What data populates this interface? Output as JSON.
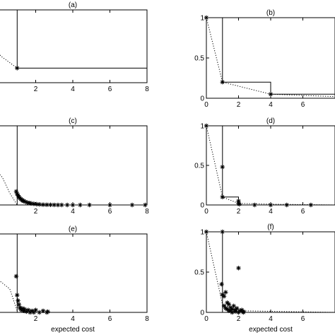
{
  "chart_data": [
    {
      "type": "line",
      "title": "(a)",
      "xlabel": "",
      "xlim": [
        0,
        8
      ],
      "ylim": [
        0,
        1
      ],
      "xticks": [
        "2",
        "4",
        "6",
        "8"
      ],
      "yticks": [],
      "staircase": [
        [
          1,
          1.05
        ],
        [
          1,
          0.2
        ],
        [
          8,
          0.2
        ]
      ],
      "dotted": [
        [
          -0.2,
          0.45
        ],
        [
          0.15,
          0.36
        ],
        [
          1,
          0.2
        ]
      ],
      "points": [
        [
          1,
          0.2
        ]
      ]
    },
    {
      "type": "line",
      "title": "(b)",
      "xlabel": "",
      "xlim": [
        0,
        8
      ],
      "ylim": [
        0,
        1
      ],
      "xticks": [
        "0",
        "2",
        "4",
        "6"
      ],
      "yticks": [
        "0",
        "0.5",
        "1"
      ],
      "staircase": [
        [
          1,
          1.05
        ],
        [
          1,
          0.2
        ],
        [
          4,
          0.2
        ],
        [
          4,
          0.05
        ],
        [
          8,
          0.05
        ]
      ],
      "dotted": [
        [
          0,
          1
        ],
        [
          1,
          0.2
        ],
        [
          4,
          0.05
        ],
        [
          8,
          0.02
        ]
      ],
      "points": [
        [
          0,
          1
        ],
        [
          1,
          0.2
        ],
        [
          4,
          0.05
        ]
      ]
    },
    {
      "type": "scatter",
      "title": "(c)",
      "xlabel": "",
      "xlim": [
        0,
        8
      ],
      "ylim": [
        0,
        1
      ],
      "xticks": [
        "2",
        "4",
        "6",
        "8"
      ],
      "yticks": [],
      "staircase": [
        [
          1,
          1.05
        ],
        [
          1,
          0.0
        ],
        [
          8,
          0.0
        ]
      ],
      "dotted": [
        [
          -0.2,
          0.45
        ],
        [
          0.2,
          0.35
        ],
        [
          0.6,
          0.15
        ],
        [
          1,
          0.0
        ]
      ],
      "points": [
        [
          0.95,
          0.17
        ],
        [
          1.0,
          0.14
        ],
        [
          1.05,
          0.12
        ],
        [
          1.1,
          0.1
        ],
        [
          1.15,
          0.085
        ],
        [
          1.2,
          0.075
        ],
        [
          1.25,
          0.065
        ],
        [
          1.3,
          0.055
        ],
        [
          1.35,
          0.05
        ],
        [
          1.45,
          0.04
        ],
        [
          1.55,
          0.03
        ],
        [
          1.65,
          0.025
        ],
        [
          1.75,
          0.02
        ],
        [
          1.9,
          0.015
        ],
        [
          2.05,
          0.01
        ],
        [
          2.2,
          0.007
        ],
        [
          2.4,
          0.004
        ],
        [
          2.6,
          0.003
        ],
        [
          2.8,
          0.002
        ],
        [
          3.0,
          0.001
        ],
        [
          3.2,
          0.0
        ],
        [
          3.4,
          0.0
        ],
        [
          3.7,
          0.0
        ],
        [
          4.0,
          0.0
        ],
        [
          4.4,
          0.0
        ],
        [
          4.9,
          0.0
        ],
        [
          6.0,
          0.0
        ],
        [
          7.2,
          0.0
        ],
        [
          7.9,
          0.0
        ]
      ]
    },
    {
      "type": "scatter",
      "title": "(d)",
      "xlabel": "",
      "xlim": [
        0,
        8
      ],
      "ylim": [
        0,
        1
      ],
      "xticks": [
        "0",
        "2",
        "4",
        "6"
      ],
      "yticks": [
        "0",
        "0.5",
        "1"
      ],
      "staircase": [
        [
          1,
          1.05
        ],
        [
          1,
          0.1
        ],
        [
          2,
          0.1
        ],
        [
          2,
          0.0
        ],
        [
          8,
          0.0
        ]
      ],
      "dotted": [
        [
          0,
          1
        ],
        [
          1,
          0.1
        ],
        [
          2,
          0.02
        ],
        [
          4,
          0.01
        ],
        [
          8,
          0.0
        ]
      ],
      "points": [
        [
          0,
          1
        ],
        [
          1,
          0.48
        ],
        [
          1,
          0.1
        ],
        [
          2,
          0.05
        ],
        [
          2,
          0.02
        ],
        [
          2.05,
          0.01
        ],
        [
          3,
          0.0
        ],
        [
          4,
          0.0
        ],
        [
          5,
          0.0
        ],
        [
          6.5,
          0.0
        ]
      ]
    },
    {
      "type": "scatter",
      "title": "(e)",
      "xlabel": "expected cost",
      "xlim": [
        0,
        8
      ],
      "ylim": [
        0,
        1
      ],
      "xticks": [
        "2",
        "4",
        "6",
        "8"
      ],
      "yticks": [],
      "staircase": [
        [
          1,
          1.05
        ],
        [
          1,
          0.0
        ],
        [
          8,
          0.0
        ]
      ],
      "dotted": [
        [
          -0.2,
          0.45
        ],
        [
          0.6,
          0.3
        ],
        [
          1,
          0.02
        ]
      ],
      "points": [
        [
          0.95,
          0.46
        ],
        [
          1.0,
          0.22
        ],
        [
          1.05,
          0.15
        ],
        [
          1.1,
          0.1
        ],
        [
          1.15,
          0.06
        ],
        [
          1.2,
          0.04
        ],
        [
          1.25,
          0.03
        ],
        [
          1.3,
          0.05
        ],
        [
          1.35,
          0.02
        ],
        [
          1.4,
          0.04
        ],
        [
          1.5,
          0.01
        ],
        [
          1.6,
          0.03
        ],
        [
          1.7,
          0.0
        ],
        [
          1.8,
          0.02
        ],
        [
          1.9,
          0.0
        ],
        [
          2.0,
          0.03
        ],
        [
          2.2,
          0.0
        ],
        [
          2.4,
          0.02
        ],
        [
          2.6,
          0.0
        ],
        [
          2.65,
          0.01
        ]
      ]
    },
    {
      "type": "scatter",
      "title": "(f)",
      "xlabel": "expected cost",
      "xlim": [
        0,
        8
      ],
      "ylim": [
        0,
        1
      ],
      "xticks": [
        "0",
        "2",
        "4",
        "6"
      ],
      "yticks": [
        "0",
        "0.5",
        "1"
      ],
      "staircase": [
        [
          1,
          1.05
        ],
        [
          1,
          0.0
        ],
        [
          8,
          0.0
        ]
      ],
      "dotted": [
        [
          0,
          1
        ],
        [
          1,
          0.1
        ],
        [
          2,
          0.02
        ],
        [
          8,
          0.0
        ]
      ],
      "points": [
        [
          0,
          1
        ],
        [
          1,
          1
        ],
        [
          0.95,
          0.35
        ],
        [
          1.0,
          0.22
        ],
        [
          1.1,
          0.2
        ],
        [
          1.2,
          0.25
        ],
        [
          1.3,
          0.12
        ],
        [
          1.4,
          0.1
        ],
        [
          1.5,
          0.06
        ],
        [
          1.6,
          0.04
        ],
        [
          1.7,
          0.08
        ],
        [
          1.8,
          0.03
        ],
        [
          1.9,
          0.05
        ],
        [
          2.0,
          0.55
        ],
        [
          2.1,
          0.02
        ],
        [
          2.2,
          0.03
        ],
        [
          2.3,
          0.01
        ],
        [
          1.2,
          0.05
        ],
        [
          1.4,
          0.02
        ],
        [
          1.6,
          0.0
        ],
        [
          1.8,
          0.01
        ],
        [
          2.0,
          0.0
        ],
        [
          2.3,
          0.0
        ],
        [
          1.1,
          0.08
        ],
        [
          1.3,
          0.04
        ],
        [
          1.5,
          0.02
        ]
      ]
    }
  ]
}
